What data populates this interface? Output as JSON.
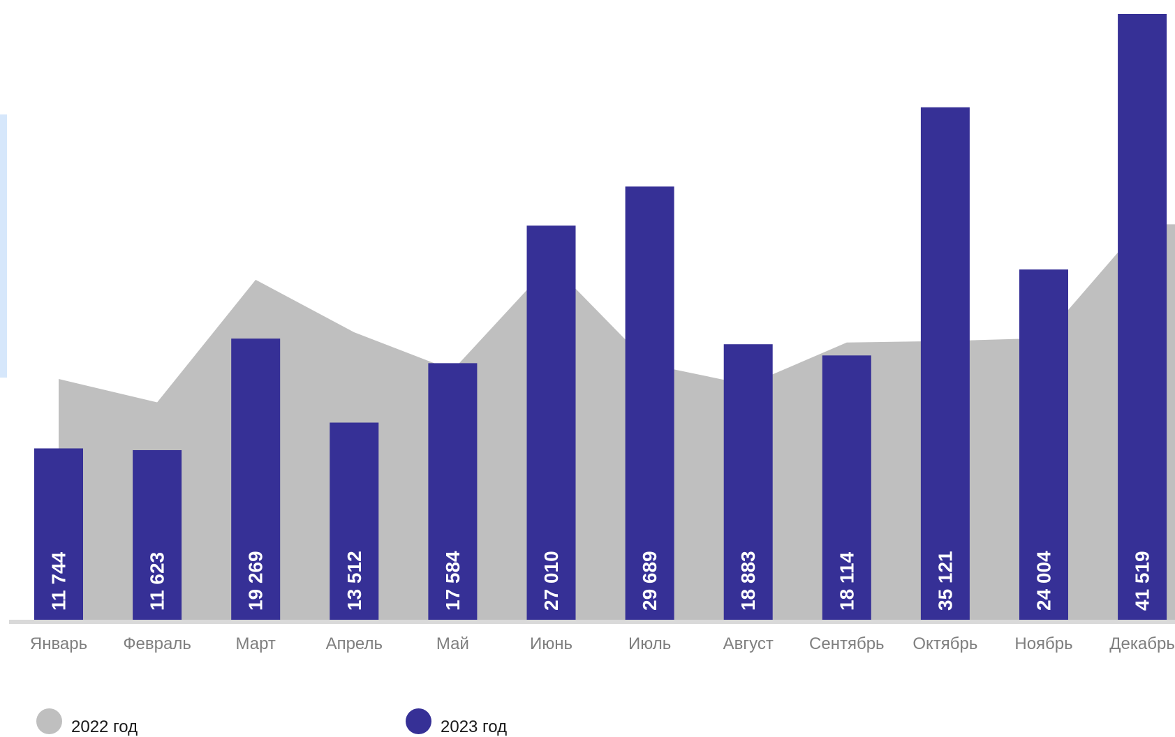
{
  "chart_data": {
    "type": "bar",
    "categories": [
      "Январь",
      "Февраль",
      "Март",
      "Апрель",
      "Май",
      "Июнь",
      "Июль",
      "Август",
      "Сентябрь",
      "Октябрь",
      "Ноябрь",
      "Декабрь"
    ],
    "series": [
      {
        "name": "2022 год",
        "type": "area",
        "color": "#bfbfbf",
        "values": [
          16500,
          14900,
          23300,
          19700,
          17100,
          24400,
          17500,
          16100,
          19000,
          19100,
          19300,
          27100
        ]
      },
      {
        "name": "2023 год",
        "type": "bar",
        "color": "#363096",
        "values": [
          11744,
          11623,
          19269,
          13512,
          17584,
          27010,
          29689,
          18883,
          18114,
          35121,
          24004,
          41519
        ],
        "labels": [
          "11 744",
          "11 623",
          "19 269",
          "13 512",
          "17 584",
          "27 010",
          "29 689",
          "18 883",
          "18 114",
          "35 121",
          "24 004",
          "41 519"
        ]
      }
    ],
    "ylim": [
      0,
      41900
    ],
    "grid": false,
    "legend_position": "bottom-left",
    "axis_color": "#d9d9d9",
    "tick_label_color": "#7f7f7f",
    "data_label_color": "#ffffff"
  },
  "legend": {
    "items": [
      {
        "label": "2022 год",
        "color": "#bfbfbf"
      },
      {
        "label": "2023 год",
        "color": "#363096"
      }
    ]
  }
}
